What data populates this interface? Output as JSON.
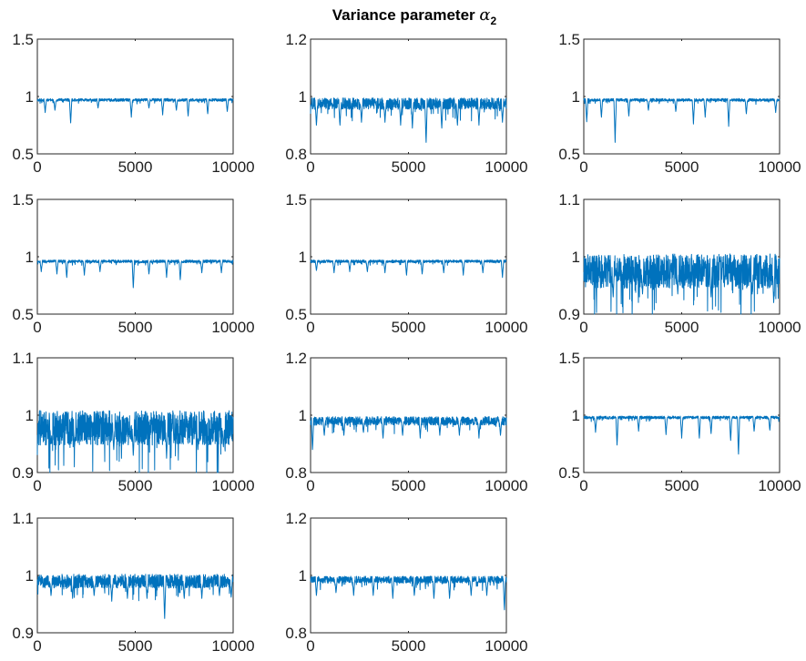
{
  "figure": {
    "title_prefix": "Variance parameter ",
    "title_symbol": "α",
    "title_subscript": "2",
    "line_color": "#0072bd"
  },
  "chart_data": [
    {
      "type": "line",
      "panel": 1,
      "xlim": [
        0,
        10000
      ],
      "ylim": [
        0.5,
        1.5
      ],
      "xticks": [
        "0",
        "5000",
        "10000"
      ],
      "yticks": [
        "0.5",
        "1",
        "1.5"
      ],
      "baseline": 0.97,
      "noise": 0.012,
      "dips": [
        [
          400,
          0.86
        ],
        [
          900,
          0.88
        ],
        [
          1700,
          0.77
        ],
        [
          3100,
          0.9
        ],
        [
          4800,
          0.82
        ],
        [
          5700,
          0.9
        ],
        [
          6400,
          0.84
        ],
        [
          7100,
          0.88
        ],
        [
          7700,
          0.83
        ],
        [
          8700,
          0.85
        ],
        [
          9700,
          0.87
        ]
      ]
    },
    {
      "type": "line",
      "panel": 2,
      "xlim": [
        0,
        10000
      ],
      "ylim": [
        0.8,
        1.2
      ],
      "xticks": [
        "0",
        "5000",
        "10000"
      ],
      "yticks": [
        "0.8",
        "1",
        "1.2"
      ],
      "baseline": 0.975,
      "noise": 0.02,
      "dips": [
        [
          300,
          0.9
        ],
        [
          1500,
          0.9
        ],
        [
          2600,
          0.91
        ],
        [
          3800,
          0.91
        ],
        [
          4600,
          0.9
        ],
        [
          5200,
          0.89
        ],
        [
          5900,
          0.84
        ],
        [
          6700,
          0.89
        ],
        [
          7500,
          0.9
        ],
        [
          8600,
          0.9
        ],
        [
          9800,
          0.91
        ]
      ]
    },
    {
      "type": "line",
      "panel": 3,
      "xlim": [
        0,
        10000
      ],
      "ylim": [
        0.5,
        1.5
      ],
      "xticks": [
        "0",
        "5000",
        "10000"
      ],
      "yticks": [
        "0.5",
        "1",
        "1.5"
      ],
      "baseline": 0.97,
      "noise": 0.012,
      "dips": [
        [
          150,
          0.78
        ],
        [
          900,
          0.82
        ],
        [
          1600,
          0.6
        ],
        [
          2300,
          0.83
        ],
        [
          3300,
          0.88
        ],
        [
          4700,
          0.87
        ],
        [
          5600,
          0.76
        ],
        [
          6200,
          0.82
        ],
        [
          7400,
          0.74
        ],
        [
          8300,
          0.85
        ],
        [
          9800,
          0.86
        ]
      ]
    },
    {
      "type": "line",
      "panel": 4,
      "xlim": [
        0,
        10000
      ],
      "ylim": [
        0.5,
        1.5
      ],
      "xticks": [
        "0",
        "5000",
        "10000"
      ],
      "yticks": [
        "0.5",
        "1",
        "1.5"
      ],
      "baseline": 0.96,
      "noise": 0.012,
      "dips": [
        [
          200,
          0.87
        ],
        [
          1000,
          0.85
        ],
        [
          1500,
          0.82
        ],
        [
          2400,
          0.84
        ],
        [
          3200,
          0.87
        ],
        [
          4900,
          0.73
        ],
        [
          5700,
          0.85
        ],
        [
          6600,
          0.82
        ],
        [
          7300,
          0.8
        ],
        [
          8400,
          0.86
        ],
        [
          9400,
          0.86
        ]
      ]
    },
    {
      "type": "line",
      "panel": 5,
      "xlim": [
        0,
        10000
      ],
      "ylim": [
        0.5,
        1.5
      ],
      "xticks": [
        "0",
        "5000",
        "10000"
      ],
      "yticks": [
        "0.5",
        "1",
        "1.5"
      ],
      "baseline": 0.96,
      "noise": 0.012,
      "dips": [
        [
          300,
          0.88
        ],
        [
          1200,
          0.86
        ],
        [
          2000,
          0.87
        ],
        [
          2900,
          0.87
        ],
        [
          3800,
          0.86
        ],
        [
          4900,
          0.84
        ],
        [
          5700,
          0.85
        ],
        [
          6800,
          0.86
        ],
        [
          7800,
          0.84
        ],
        [
          8800,
          0.86
        ],
        [
          9800,
          0.82
        ]
      ]
    },
    {
      "type": "line",
      "panel": 6,
      "xlim": [
        0,
        10000
      ],
      "ylim": [
        0.9,
        1.1
      ],
      "xticks": [
        "0",
        "5000",
        "10000"
      ],
      "yticks": [
        "0.9",
        "1",
        "1.1"
      ],
      "baseline": 0.975,
      "noise": 0.03,
      "dips": [
        [
          1500,
          0.93
        ],
        [
          3000,
          0.935
        ],
        [
          4800,
          0.935
        ],
        [
          6500,
          0.93
        ],
        [
          8600,
          0.935
        ],
        [
          9700,
          0.92
        ]
      ]
    },
    {
      "type": "line",
      "panel": 7,
      "xlim": [
        0,
        10000
      ],
      "ylim": [
        0.9,
        1.1
      ],
      "xticks": [
        "0",
        "5000",
        "10000"
      ],
      "yticks": [
        "0.9",
        "1",
        "1.1"
      ],
      "baseline": 0.978,
      "noise": 0.03,
      "dips": [
        [
          700,
          0.95
        ],
        [
          1900,
          0.945
        ],
        [
          3900,
          0.94
        ],
        [
          4900,
          0.93
        ],
        [
          6600,
          0.925
        ],
        [
          8200,
          0.94
        ],
        [
          9500,
          0.945
        ]
      ]
    },
    {
      "type": "line",
      "panel": 8,
      "xlim": [
        0,
        10000
      ],
      "ylim": [
        0.8,
        1.2
      ],
      "xticks": [
        "0",
        "5000",
        "10000"
      ],
      "yticks": [
        "0.8",
        "1",
        "1.2"
      ],
      "baseline": 0.98,
      "noise": 0.015,
      "dips": [
        [
          100,
          0.88
        ],
        [
          700,
          0.93
        ],
        [
          1700,
          0.93
        ],
        [
          2700,
          0.94
        ],
        [
          3700,
          0.92
        ],
        [
          4700,
          0.93
        ],
        [
          5600,
          0.92
        ],
        [
          6600,
          0.93
        ],
        [
          7600,
          0.93
        ],
        [
          8600,
          0.92
        ],
        [
          9700,
          0.93
        ]
      ]
    },
    {
      "type": "line",
      "panel": 9,
      "xlim": [
        0,
        10000
      ],
      "ylim": [
        0.5,
        1.5
      ],
      "xticks": [
        "0",
        "5000",
        "10000"
      ],
      "yticks": [
        "0.5",
        "1",
        "1.5"
      ],
      "baseline": 0.98,
      "noise": 0.012,
      "dips": [
        [
          600,
          0.85
        ],
        [
          1700,
          0.74
        ],
        [
          2800,
          0.86
        ],
        [
          4200,
          0.83
        ],
        [
          5000,
          0.8
        ],
        [
          5900,
          0.8
        ],
        [
          6500,
          0.84
        ],
        [
          7500,
          0.78
        ],
        [
          7900,
          0.66
        ],
        [
          8700,
          0.86
        ],
        [
          9500,
          0.87
        ]
      ]
    },
    {
      "type": "line",
      "panel": 10,
      "xlim": [
        0,
        10000
      ],
      "ylim": [
        0.9,
        1.1
      ],
      "xticks": [
        "0",
        "5000",
        "10000"
      ],
      "yticks": [
        "0.9",
        "1",
        "1.1"
      ],
      "baseline": 0.99,
      "noise": 0.012,
      "dips": [
        [
          700,
          0.965
        ],
        [
          1800,
          0.96
        ],
        [
          2900,
          0.965
        ],
        [
          3800,
          0.955
        ],
        [
          4600,
          0.96
        ],
        [
          5600,
          0.96
        ],
        [
          6500,
          0.925
        ],
        [
          7500,
          0.96
        ],
        [
          8400,
          0.96
        ],
        [
          9300,
          0.965
        ],
        [
          9900,
          0.962
        ]
      ]
    },
    {
      "type": "line",
      "panel": 11,
      "xlim": [
        0,
        10000
      ],
      "ylim": [
        0.8,
        1.2
      ],
      "xticks": [
        "0",
        "5000",
        "10000"
      ],
      "yticks": [
        "0.8",
        "1",
        "1.2"
      ],
      "baseline": 0.985,
      "noise": 0.012,
      "dips": [
        [
          300,
          0.93
        ],
        [
          1300,
          0.94
        ],
        [
          2200,
          0.93
        ],
        [
          3200,
          0.93
        ],
        [
          4200,
          0.92
        ],
        [
          5300,
          0.93
        ],
        [
          6300,
          0.92
        ],
        [
          7100,
          0.92
        ],
        [
          8200,
          0.93
        ],
        [
          9000,
          0.93
        ],
        [
          9900,
          0.88
        ]
      ]
    }
  ]
}
